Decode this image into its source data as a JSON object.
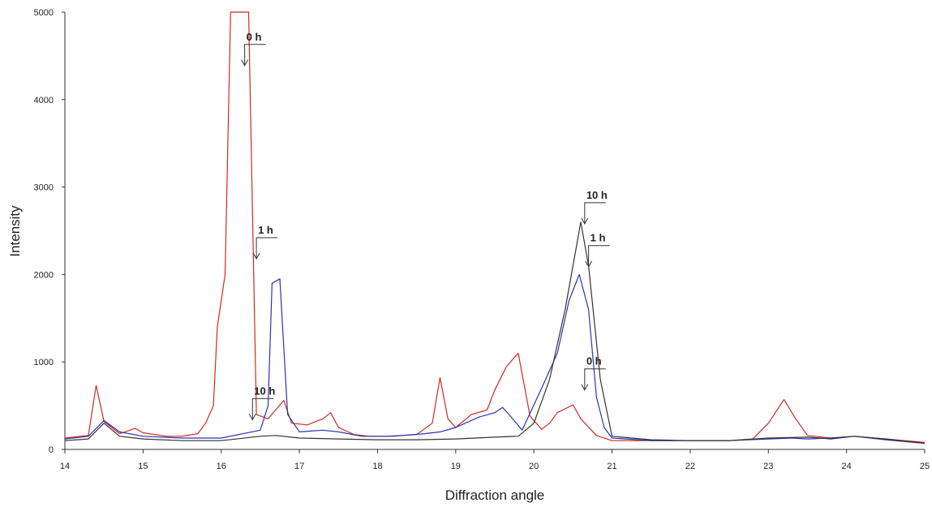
{
  "chart_data": {
    "type": "line",
    "title": "",
    "xlabel": "Diffraction angle",
    "ylabel": "Intensity",
    "xlim": [
      14,
      25
    ],
    "ylim": [
      0,
      5000
    ],
    "x_ticks": [
      "14",
      "15",
      "16",
      "17",
      "18",
      "19",
      "20",
      "21",
      "22",
      "23",
      "24",
      "25"
    ],
    "y_ticks": [
      "0",
      "1000",
      "2000",
      "3000",
      "4000",
      "5000"
    ],
    "grid": false,
    "legend": "none",
    "colors": {
      "red": "#d02a20",
      "blue": "#2a34b0",
      "black": "#333333"
    },
    "series": [
      {
        "color": "red",
        "points": [
          [
            14.0,
            130
          ],
          [
            14.3,
            160
          ],
          [
            14.4,
            730
          ],
          [
            14.5,
            320
          ],
          [
            14.7,
            180
          ],
          [
            14.9,
            240
          ],
          [
            15.0,
            190
          ],
          [
            15.3,
            150
          ],
          [
            15.5,
            150
          ],
          [
            15.7,
            180
          ],
          [
            15.8,
            300
          ],
          [
            15.9,
            500
          ],
          [
            15.95,
            1400
          ],
          [
            16.05,
            2000
          ],
          [
            16.12,
            5000
          ],
          [
            16.35,
            5000
          ],
          [
            16.45,
            400
          ],
          [
            16.6,
            350
          ],
          [
            16.8,
            560
          ],
          [
            16.9,
            300
          ],
          [
            17.1,
            280
          ],
          [
            17.3,
            350
          ],
          [
            17.4,
            420
          ],
          [
            17.5,
            250
          ],
          [
            17.7,
            170
          ],
          [
            17.9,
            150
          ],
          [
            18.1,
            150
          ],
          [
            18.3,
            160
          ],
          [
            18.5,
            170
          ],
          [
            18.7,
            300
          ],
          [
            18.8,
            820
          ],
          [
            18.9,
            350
          ],
          [
            19.0,
            250
          ],
          [
            19.2,
            400
          ],
          [
            19.4,
            450
          ],
          [
            19.5,
            680
          ],
          [
            19.65,
            950
          ],
          [
            19.8,
            1100
          ],
          [
            19.95,
            380
          ],
          [
            20.1,
            230
          ],
          [
            20.2,
            300
          ],
          [
            20.3,
            420
          ],
          [
            20.5,
            510
          ],
          [
            20.6,
            350
          ],
          [
            20.8,
            160
          ],
          [
            21.0,
            100
          ],
          [
            21.5,
            100
          ],
          [
            22.0,
            100
          ],
          [
            22.5,
            100
          ],
          [
            22.8,
            120
          ],
          [
            23.0,
            300
          ],
          [
            23.2,
            570
          ],
          [
            23.35,
            350
          ],
          [
            23.5,
            160
          ],
          [
            23.8,
            130
          ],
          [
            24.1,
            150
          ],
          [
            24.5,
            120
          ],
          [
            25.0,
            80
          ]
        ]
      },
      {
        "color": "blue",
        "points": [
          [
            14.0,
            120
          ],
          [
            14.3,
            150
          ],
          [
            14.5,
            330
          ],
          [
            14.7,
            200
          ],
          [
            15.0,
            150
          ],
          [
            15.5,
            130
          ],
          [
            16.0,
            130
          ],
          [
            16.5,
            220
          ],
          [
            16.6,
            500
          ],
          [
            16.65,
            1900
          ],
          [
            16.75,
            1950
          ],
          [
            16.85,
            400
          ],
          [
            17.0,
            200
          ],
          [
            17.3,
            220
          ],
          [
            17.5,
            200
          ],
          [
            17.8,
            150
          ],
          [
            18.2,
            150
          ],
          [
            18.6,
            180
          ],
          [
            18.8,
            200
          ],
          [
            19.0,
            250
          ],
          [
            19.3,
            370
          ],
          [
            19.5,
            420
          ],
          [
            19.6,
            480
          ],
          [
            19.7,
            380
          ],
          [
            19.85,
            220
          ],
          [
            20.1,
            700
          ],
          [
            20.3,
            1100
          ],
          [
            20.45,
            1700
          ],
          [
            20.58,
            2000
          ],
          [
            20.7,
            1600
          ],
          [
            20.8,
            600
          ],
          [
            20.9,
            250
          ],
          [
            21.0,
            130
          ],
          [
            21.5,
            100
          ],
          [
            22.0,
            100
          ],
          [
            22.5,
            100
          ],
          [
            23.0,
            120
          ],
          [
            23.3,
            130
          ],
          [
            23.5,
            120
          ],
          [
            23.8,
            130
          ],
          [
            24.1,
            150
          ],
          [
            24.5,
            110
          ],
          [
            25.0,
            70
          ]
        ]
      },
      {
        "color": "black",
        "points": [
          [
            14.0,
            100
          ],
          [
            14.3,
            120
          ],
          [
            14.5,
            300
          ],
          [
            14.7,
            150
          ],
          [
            15.0,
            120
          ],
          [
            15.5,
            100
          ],
          [
            16.0,
            100
          ],
          [
            16.5,
            150
          ],
          [
            16.7,
            160
          ],
          [
            17.0,
            130
          ],
          [
            17.5,
            120
          ],
          [
            18.0,
            110
          ],
          [
            18.5,
            110
          ],
          [
            19.0,
            120
          ],
          [
            19.5,
            140
          ],
          [
            19.8,
            150
          ],
          [
            20.0,
            300
          ],
          [
            20.2,
            800
          ],
          [
            20.4,
            1600
          ],
          [
            20.5,
            2100
          ],
          [
            20.6,
            2600
          ],
          [
            20.7,
            2100
          ],
          [
            20.85,
            800
          ],
          [
            21.0,
            150
          ],
          [
            21.5,
            110
          ],
          [
            22.0,
            100
          ],
          [
            22.5,
            100
          ],
          [
            23.0,
            130
          ],
          [
            23.5,
            140
          ],
          [
            23.8,
            120
          ],
          [
            24.1,
            150
          ],
          [
            24.5,
            120
          ],
          [
            25.0,
            70
          ]
        ]
      }
    ],
    "annotations": [
      {
        "text": "0 h",
        "x": 16.3,
        "y": 4390
      },
      {
        "text": "1 h",
        "x": 16.45,
        "y": 2180
      },
      {
        "text": "10 h",
        "x": 16.4,
        "y": 340
      },
      {
        "text": "10 h",
        "x": 20.65,
        "y": 2580
      },
      {
        "text": "1 h",
        "x": 20.7,
        "y": 2090
      },
      {
        "text": "0 h",
        "x": 20.65,
        "y": 680
      }
    ]
  }
}
